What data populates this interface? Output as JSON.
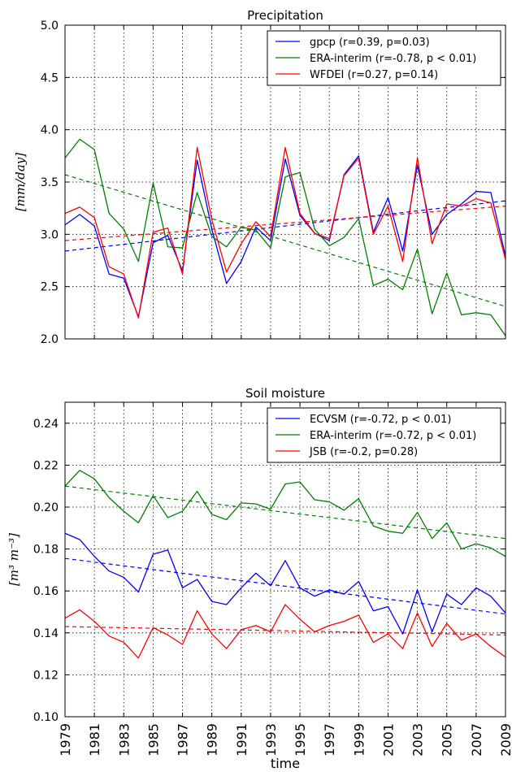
{
  "chart_data": [
    {
      "type": "line",
      "title": "Precipitation",
      "ylabel": "[mm/day]",
      "xlabel": "",
      "xlim": [
        1979,
        2009
      ],
      "ylim": [
        2.0,
        5.0
      ],
      "yticks": [
        "2.0",
        "2.5",
        "3.0",
        "3.5",
        "4.0",
        "4.5",
        "5.0"
      ],
      "grid": true,
      "legend_position": "top-right",
      "x": [
        1979,
        1980,
        1981,
        1982,
        1983,
        1984,
        1985,
        1986,
        1987,
        1988,
        1989,
        1990,
        1991,
        1992,
        1993,
        1994,
        1995,
        1996,
        1997,
        1998,
        1999,
        2000,
        2001,
        2002,
        2003,
        2004,
        2005,
        2006,
        2007,
        2008,
        2009
      ],
      "series": [
        {
          "name": "gpcp (r=0.39, p=0.03)",
          "color": "#0000ff",
          "values": [
            3.09,
            3.19,
            3.08,
            2.62,
            2.58,
            2.21,
            2.92,
            2.99,
            2.65,
            3.71,
            3.05,
            2.53,
            2.74,
            3.07,
            2.94,
            3.72,
            3.18,
            3.01,
            2.94,
            3.57,
            3.75,
            3.02,
            3.35,
            2.84,
            3.66,
            3.0,
            3.19,
            3.29,
            3.41,
            3.4,
            2.79
          ],
          "trend": [
            2.84,
            3.32
          ]
        },
        {
          "name": "ERA-interim (r=-0.78, p < 0.01)",
          "color": "#007f00",
          "values": [
            3.73,
            3.91,
            3.81,
            3.2,
            3.05,
            2.74,
            3.49,
            2.88,
            2.87,
            3.4,
            2.98,
            2.88,
            3.07,
            3.04,
            2.87,
            3.55,
            3.59,
            3.05,
            2.89,
            2.97,
            3.15,
            2.51,
            2.57,
            2.47,
            2.86,
            2.24,
            2.63,
            2.23,
            2.25,
            2.23,
            2.03
          ],
          "trend": [
            3.57,
            2.31
          ]
        },
        {
          "name": "WFDEI (r=0.27, p=0.14)",
          "color": "#ff0000",
          "values": [
            3.2,
            3.26,
            3.16,
            2.69,
            2.62,
            2.2,
            3.02,
            3.06,
            2.62,
            3.83,
            3.14,
            2.64,
            2.91,
            3.12,
            2.98,
            3.83,
            3.2,
            3.01,
            2.96,
            3.56,
            3.73,
            3.0,
            3.27,
            2.74,
            3.73,
            2.91,
            3.29,
            3.27,
            3.34,
            3.3,
            2.76
          ],
          "trend": [
            2.94,
            3.27
          ]
        }
      ]
    },
    {
      "type": "line",
      "title": "Soil moisture",
      "ylabel": "[m³ m⁻³]",
      "xlabel": "time",
      "xlim": [
        1979,
        2009
      ],
      "ylim": [
        0.1,
        0.25
      ],
      "yticks": [
        "0.10",
        "0.12",
        "0.14",
        "0.16",
        "0.18",
        "0.20",
        "0.22",
        "0.24"
      ],
      "xticks": [
        "1979",
        "1981",
        "1983",
        "1985",
        "1987",
        "1989",
        "1991",
        "1993",
        "1995",
        "1997",
        "1999",
        "2001",
        "2003",
        "2005",
        "2007",
        "2009"
      ],
      "grid": true,
      "legend_position": "top-right",
      "x": [
        1979,
        1980,
        1981,
        1982,
        1983,
        1984,
        1985,
        1986,
        1987,
        1988,
        1989,
        1990,
        1991,
        1992,
        1993,
        1994,
        1995,
        1996,
        1997,
        1998,
        1999,
        2000,
        2001,
        2002,
        2003,
        2004,
        2005,
        2006,
        2007,
        2008,
        2009
      ],
      "series": [
        {
          "name": "ECVSM (r=-0.72, p < 0.01)",
          "color": "#0000ff",
          "values": [
            0.1875,
            0.1845,
            0.1765,
            0.1695,
            0.1665,
            0.1595,
            0.1775,
            0.1795,
            0.1615,
            0.1655,
            0.155,
            0.1535,
            0.1615,
            0.1685,
            0.1625,
            0.1745,
            0.1615,
            0.1575,
            0.1605,
            0.1585,
            0.1645,
            0.1505,
            0.1525,
            0.1395,
            0.1605,
            0.1405,
            0.1585,
            0.1535,
            0.1615,
            0.1575,
            0.1495
          ],
          "trend": [
            0.1755,
            0.149
          ]
        },
        {
          "name": "ERA-interim (r=-0.72, p < 0.01)",
          "color": "#007f00",
          "values": [
            0.21,
            0.2175,
            0.2135,
            0.2045,
            0.198,
            0.1925,
            0.2055,
            0.195,
            0.198,
            0.2075,
            0.1965,
            0.194,
            0.202,
            0.2015,
            0.199,
            0.211,
            0.212,
            0.2035,
            0.2025,
            0.1985,
            0.204,
            0.191,
            0.1885,
            0.1875,
            0.1975,
            0.185,
            0.1925,
            0.18,
            0.1825,
            0.1805,
            0.1765
          ],
          "trend": [
            0.21,
            0.185
          ]
        },
        {
          "name": "JSB (r=-0.2, p=0.28)",
          "color": "#ff0000",
          "values": [
            0.147,
            0.151,
            0.1455,
            0.1385,
            0.1355,
            0.128,
            0.1425,
            0.139,
            0.1345,
            0.1505,
            0.1395,
            0.1325,
            0.1415,
            0.1435,
            0.1405,
            0.1535,
            0.1465,
            0.1405,
            0.1435,
            0.1455,
            0.1485,
            0.1355,
            0.1395,
            0.1325,
            0.1495,
            0.1335,
            0.1445,
            0.1365,
            0.1395,
            0.1335,
            0.1285
          ],
          "trend": [
            0.143,
            0.139
          ]
        }
      ]
    }
  ]
}
